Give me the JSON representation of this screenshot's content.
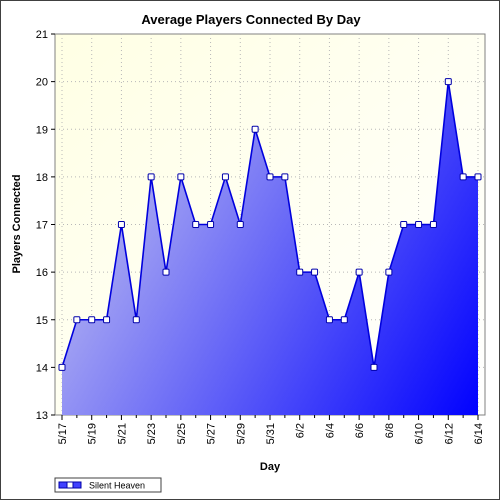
{
  "chart_data": {
    "type": "area",
    "title": "Average Players Connected By Day",
    "xlabel": "Day",
    "ylabel": "Players Connected",
    "ylim": [
      13,
      21
    ],
    "yticks": [
      13,
      14,
      15,
      16,
      17,
      18,
      19,
      20,
      21
    ],
    "x": [
      "5/17",
      "5/18",
      "5/19",
      "5/20",
      "5/21",
      "5/22",
      "5/23",
      "5/24",
      "5/25",
      "5/26",
      "5/27",
      "5/28",
      "5/29",
      "5/30",
      "5/31",
      "6/1",
      "6/2",
      "6/3",
      "6/4",
      "6/5",
      "6/6",
      "6/7",
      "6/8",
      "6/9",
      "6/10",
      "6/11",
      "6/12",
      "6/13",
      "6/14"
    ],
    "xtick_labels": [
      "5/17",
      "5/19",
      "5/21",
      "5/23",
      "5/25",
      "5/27",
      "5/29",
      "5/31",
      "6/2",
      "6/4",
      "6/6",
      "6/8",
      "6/10",
      "6/12",
      "6/14"
    ],
    "series": [
      {
        "name": "Silent Heaven",
        "values": [
          14,
          15,
          15,
          15,
          17,
          15,
          18,
          16,
          18,
          17,
          17,
          18,
          17,
          19,
          18,
          18,
          16,
          16,
          15,
          15,
          16,
          14,
          16,
          17,
          17,
          17,
          20,
          18,
          18
        ]
      }
    ],
    "grid": true,
    "legend_position": "bottom-left",
    "colors": {
      "line": "#0000dd",
      "fill_light": "#c0c0f0",
      "fill_dark": "#0000ff",
      "plot_bg_top": "#ffffe4",
      "plot_bg_bottom": "#ffffff",
      "grid": "#b8b8b8"
    }
  }
}
